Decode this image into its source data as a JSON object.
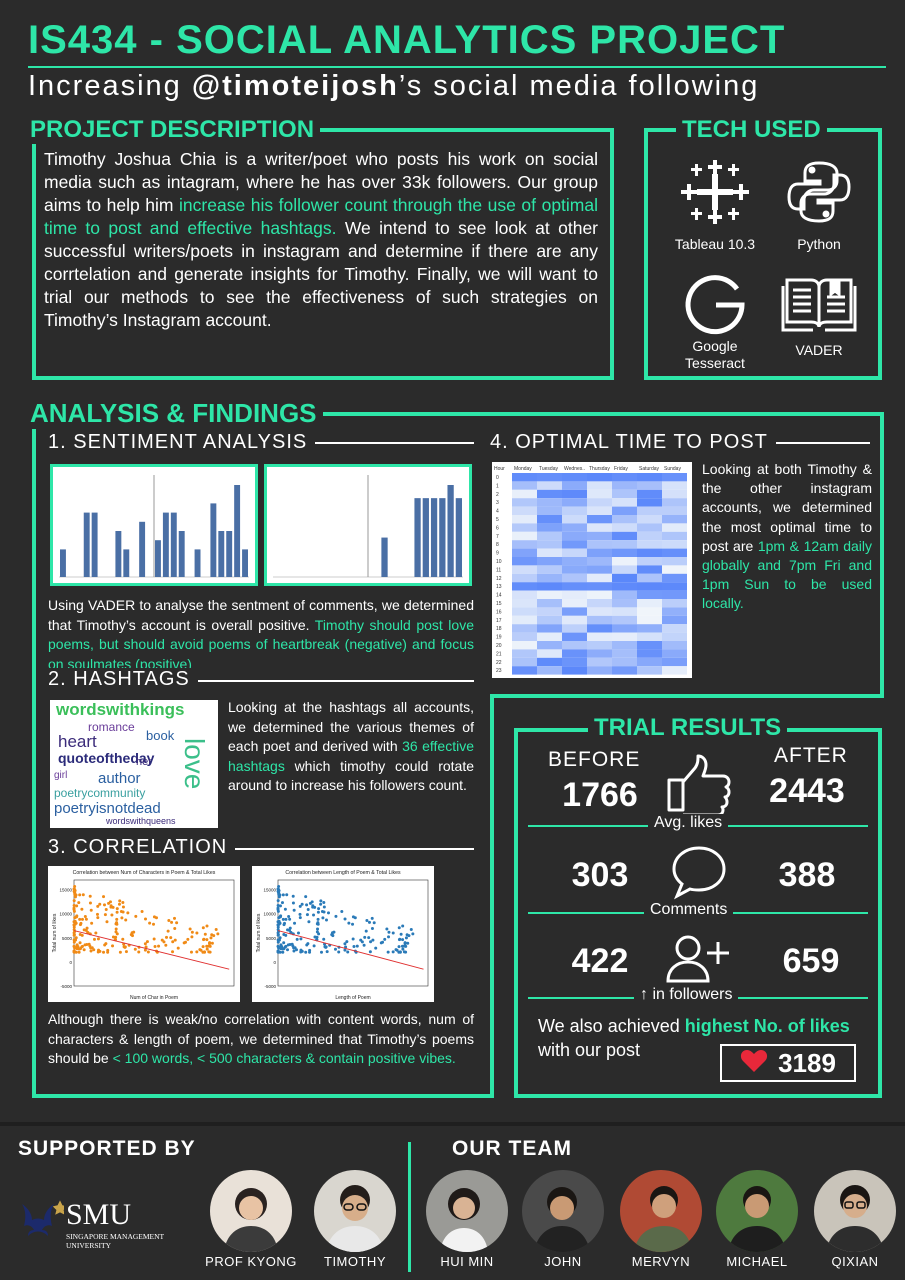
{
  "header": {
    "title": "IS434 - SOCIAL ANALYTICS PROJECT",
    "subtitle_pre": "Increasing ",
    "subtitle_handle": "@timoteijosh",
    "subtitle_post": "’s social media following"
  },
  "description": {
    "heading": "PROJECT DESCRIPTION",
    "text_1": "Timothy Joshua Chia is a writer/poet who posts his work on social media such as intagram, where he has over 33k followers. Our group aims to help him ",
    "text_highlight": "increase his follower count through the use of optimal time to post and effective hashtags.",
    "text_2": " We intend to see look at other successful writers/poets in instagram and determine if there are any corrtelation and generate insights for Timothy. Finally, we will want to trial our methods to see the effectiveness of such strategies on Timothy’s Instagram account."
  },
  "tech": {
    "heading": "TECH USED",
    "items": [
      {
        "label": "Tableau 10.3",
        "icon": "tableau-icon"
      },
      {
        "label": "Python",
        "icon": "python-icon"
      },
      {
        "label": "Google Tesseract",
        "icon": "google-icon"
      },
      {
        "label": "VADER",
        "icon": "book-icon"
      }
    ]
  },
  "analysis": {
    "heading": "ANALYSIS & FINDINGS",
    "sentiment": {
      "heading": "1. SENTIMENT ANALYSIS",
      "text_1": "Using VADER to analyse the sentment of comments, we determined that Timothy’s account is overall positive. ",
      "text_highlight": "Timothy should post love poems, but should avoid poems of heartbreak (negative) and focus on soulmates (positive)"
    },
    "hashtags": {
      "heading": "2. HASHTAGS",
      "text_1": "Looking at the hashtags all accounts, we determined the various themes of each poet and derived with ",
      "text_highlight": "36 effective hashtags",
      "text_2": " which timothy could rotate around to increase his followers count.",
      "cloud": [
        "wordswithkings",
        "romance",
        "heart",
        "book",
        "quoteoftheday",
        "love",
        "author",
        "poetrycommunity",
        "poetryisnotdead",
        "wordswithqueens",
        "singapore",
        "girl",
        "her",
        "poet",
        "sgwriters",
        "igsg"
      ]
    },
    "correlation": {
      "heading": "3. CORRELATION",
      "chart1_title": "Correlation between Num of Characters in Poem & Total Likes",
      "chart1_xlabel": "Num of Char in Poem",
      "chart2_title": "Correlation between Length of Poem & Total Likes",
      "chart2_xlabel": "Length of Poem",
      "ylabel": "Total num of likes",
      "text_1": "Although there is weak/no correlation with content words, num of characters & length of poem, we determined that Timothy’s poems should be ",
      "text_highlight": "< 100 words, < 500 characters & contain positive vibes."
    },
    "optimal": {
      "heading": "4. OPTIMAL TIME TO POST",
      "text_1": "Looking at both Timothy & the other instagram accounts, we determined the most optimal time to post are ",
      "text_highlight": "1pm & 12am daily globally and 7pm Fri and 1pm Sun to be used locally.",
      "hour_label": "Hour",
      "days": [
        "Monday",
        "Tuesday",
        "Wednes..",
        "Thursday",
        "Friday",
        "Saturday",
        "Sunday"
      ]
    }
  },
  "trial": {
    "heading": "TRIAL RESULTS",
    "before_label": "BEFORE",
    "after_label": "AFTER",
    "likes": {
      "before": "1766",
      "after": "2443",
      "label": "Avg. likes"
    },
    "comments": {
      "before": "303",
      "after": "388",
      "label": "Comments"
    },
    "followers": {
      "before": "422",
      "after": "659",
      "label": "↑ in followers"
    },
    "note_1": "We also achieved ",
    "note_highlight": "highest No. of likes",
    "note_2": " with our post",
    "top_likes": "3189"
  },
  "chart_data": [
    {
      "type": "bar",
      "title": "",
      "values": [
        3,
        0,
        0,
        7,
        7,
        0,
        0,
        5,
        3,
        0,
        6,
        0,
        4,
        7,
        7,
        5,
        0,
        3,
        0,
        8,
        5,
        5,
        10,
        3
      ]
    },
    {
      "type": "bar",
      "title": "",
      "values": [
        0,
        0,
        0,
        0,
        0,
        0,
        0,
        0,
        0,
        0,
        0,
        0,
        0,
        6,
        0,
        0,
        0,
        12,
        12,
        12,
        12,
        14,
        12
      ]
    },
    {
      "type": "scatter",
      "title": "Correlation between Num of Characters in Poem & Total Likes",
      "xlabel": "Num of Char in Poem",
      "ylabel": "Total num of likes",
      "xlim": [
        0,
        2100
      ],
      "ylim": [
        -5000,
        17000
      ]
    },
    {
      "type": "scatter",
      "title": "Correlation between Length of Poem & Total Likes",
      "xlabel": "Length of Poem",
      "ylabel": "Total num of likes",
      "xlim": [
        0,
        500
      ],
      "ylim": [
        -5000,
        17000
      ]
    }
  ],
  "footer": {
    "supported_heading": "SUPPORTED BY",
    "team_heading": "OUR TEAM",
    "smu_name": "SMU",
    "smu_full": "SINGAPORE MANAGEMENT UNIVERSITY",
    "supporters": [
      "PROF KYONG",
      "TIMOTHY"
    ],
    "team": [
      "HUI MIN",
      "JOHN",
      "MERVYN",
      "MICHAEL",
      "QIXIAN"
    ]
  }
}
